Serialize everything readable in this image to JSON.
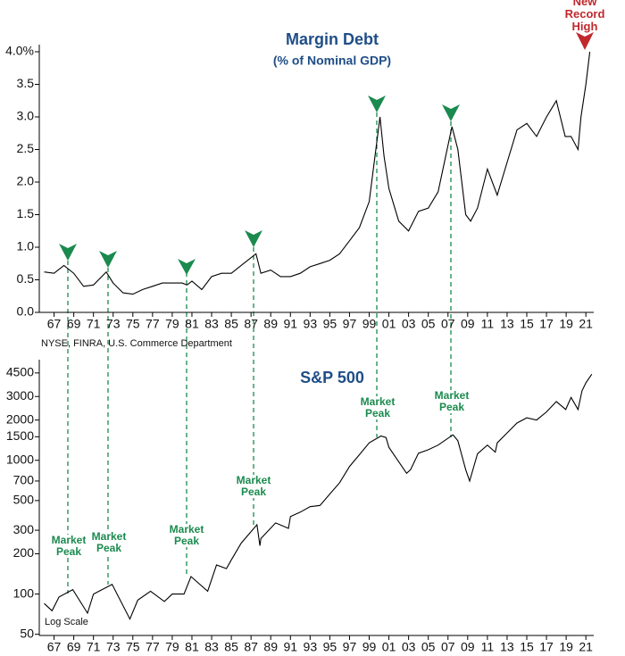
{
  "chart_data": [
    {
      "type": "line",
      "title": "Margin Debt",
      "subtitle": "(% of Nominal GDP)",
      "source": "NYSE, FINRA, U.S. Commerce Department",
      "annotations": [
        "New\nRecord High"
      ],
      "color": "#000000",
      "x": [
        1966,
        1967,
        1968,
        1969,
        1970,
        1971,
        1972.3,
        1973,
        1974,
        1975,
        1976,
        1977,
        1978,
        1979,
        1980,
        1980.5,
        1981,
        1982,
        1983,
        1984,
        1985,
        1986,
        1987.5,
        1988,
        1989,
        1990,
        1991,
        1992,
        1993,
        1994,
        1995,
        1996,
        1997,
        1998,
        1999,
        2000.1,
        2000.5,
        2001,
        2002,
        2003,
        2004,
        2005,
        2006,
        2007.4,
        2008,
        2008.8,
        2009.3,
        2010,
        2011,
        2012,
        2013,
        2014,
        2015,
        2016,
        2017,
        2018,
        2018.9,
        2019.5,
        2020.2,
        2020.5,
        2021,
        2021.4
      ],
      "values": [
        0.62,
        0.6,
        0.72,
        0.6,
        0.4,
        0.42,
        0.62,
        0.45,
        0.3,
        0.28,
        0.35,
        0.4,
        0.45,
        0.45,
        0.45,
        0.42,
        0.48,
        0.35,
        0.55,
        0.6,
        0.6,
        0.72,
        0.9,
        0.6,
        0.65,
        0.55,
        0.55,
        0.6,
        0.7,
        0.75,
        0.8,
        0.9,
        1.1,
        1.3,
        1.7,
        3.0,
        2.4,
        1.9,
        1.4,
        1.25,
        1.55,
        1.6,
        1.85,
        2.85,
        2.5,
        1.5,
        1.4,
        1.6,
        2.2,
        1.8,
        2.3,
        2.8,
        2.9,
        2.7,
        3.0,
        3.25,
        2.7,
        2.7,
        2.5,
        3.0,
        3.5,
        4.0
      ],
      "xlim": [
        1965.5,
        2021.8
      ],
      "xticks": [
        {
          "value": 1967,
          "label": "67"
        },
        {
          "value": 1969,
          "label": "69"
        },
        {
          "value": 1971,
          "label": "71"
        },
        {
          "value": 1973,
          "label": "73"
        },
        {
          "value": 1975,
          "label": "75"
        },
        {
          "value": 1977,
          "label": "77"
        },
        {
          "value": 1979,
          "label": "79"
        },
        {
          "value": 1981,
          "label": "81"
        },
        {
          "value": 1983,
          "label": "83"
        },
        {
          "value": 1985,
          "label": "85"
        },
        {
          "value": 1987,
          "label": "87"
        },
        {
          "value": 1989,
          "label": "89"
        },
        {
          "value": 1991,
          "label": "91"
        },
        {
          "value": 1993,
          "label": "93"
        },
        {
          "value": 1995,
          "label": "95"
        },
        {
          "value": 1997,
          "label": "97"
        },
        {
          "value": 1999,
          "label": "99"
        },
        {
          "value": 2001,
          "label": "01"
        },
        {
          "value": 2003,
          "label": "03"
        },
        {
          "value": 2005,
          "label": "05"
        },
        {
          "value": 2007,
          "label": "07"
        },
        {
          "value": 2009,
          "label": "09"
        },
        {
          "value": 2011,
          "label": "11"
        },
        {
          "value": 2013,
          "label": "13"
        },
        {
          "value": 2015,
          "label": "15"
        },
        {
          "value": 2017,
          "label": "17"
        },
        {
          "value": 2019,
          "label": "19"
        },
        {
          "value": 2021,
          "label": "21"
        }
      ],
      "ylim": [
        0,
        4
      ],
      "yticks": [
        {
          "value": 0,
          "label": "0.0"
        },
        0.5,
        {
          "value": 1,
          "label": "1.0"
        },
        1.5,
        {
          "value": 2,
          "label": "2.0"
        },
        2.5,
        {
          "value": 3,
          "label": "3.0"
        },
        3.5,
        {
          "value": 4,
          "label": "4.0%"
        }
      ]
    },
    {
      "type": "line",
      "title": "S&P 500",
      "log_scale": true,
      "scale_note": "Log Scale",
      "annotations": [
        "Market\nPeak",
        "Market\nPeak",
        "Market\nPeak",
        "Market\nPeak",
        "Market\nPeak",
        "Market\nPeak"
      ],
      "color": "#000000",
      "x": [
        1966,
        1966.8,
        1967.5,
        1968.9,
        1970.4,
        1971,
        1972.9,
        1974.7,
        1975.5,
        1976.8,
        1978.2,
        1979,
        1980.2,
        1980.9,
        1982.6,
        1983.5,
        1984.5,
        1985,
        1986,
        1987.6,
        1987.9,
        1988,
        1989.5,
        1990.8,
        1991,
        1992,
        1993,
        1994,
        1995,
        1996,
        1997,
        1998,
        1999,
        2000.2,
        2000.7,
        2001,
        2001.7,
        2002.8,
        2003.2,
        2004,
        2005,
        2006,
        2007.5,
        2008,
        2008.8,
        2009.2,
        2010,
        2011,
        2011.8,
        2012,
        2013,
        2014,
        2015,
        2016,
        2017,
        2018,
        2018.95,
        2019.5,
        2020.2,
        2020.6,
        2021,
        2021.6
      ],
      "values": [
        85,
        75,
        95,
        108,
        72,
        100,
        118,
        65,
        90,
        105,
        88,
        100,
        100,
        135,
        105,
        165,
        155,
        180,
        240,
        330,
        230,
        260,
        340,
        310,
        380,
        410,
        450,
        460,
        560,
        680,
        900,
        1100,
        1350,
        1520,
        1480,
        1250,
        1050,
        800,
        850,
        1130,
        1200,
        1300,
        1550,
        1400,
        850,
        700,
        1120,
        1300,
        1150,
        1350,
        1600,
        1900,
        2080,
        2000,
        2300,
        2750,
        2400,
        2950,
        2400,
        3300,
        3800,
        4400
      ],
      "xlim": [
        1965.5,
        2021.8
      ],
      "xticks": [
        {
          "value": 1967,
          "label": "67"
        },
        {
          "value": 1969,
          "label": "69"
        },
        {
          "value": 1971,
          "label": "71"
        },
        {
          "value": 1973,
          "label": "73"
        },
        {
          "value": 1975,
          "label": "75"
        },
        {
          "value": 1977,
          "label": "77"
        },
        {
          "value": 1979,
          "label": "79"
        },
        {
          "value": 1981,
          "label": "81"
        },
        {
          "value": 1983,
          "label": "83"
        },
        {
          "value": 1985,
          "label": "85"
        },
        {
          "value": 1987,
          "label": "87"
        },
        {
          "value": 1989,
          "label": "89"
        },
        {
          "value": 1991,
          "label": "91"
        },
        {
          "value": 1993,
          "label": "93"
        },
        {
          "value": 1995,
          "label": "95"
        },
        {
          "value": 1997,
          "label": "97"
        },
        {
          "value": 1999,
          "label": "99"
        },
        {
          "value": 2001,
          "label": "01"
        },
        {
          "value": 2003,
          "label": "03"
        },
        {
          "value": 2005,
          "label": "05"
        },
        {
          "value": 2007,
          "label": "07"
        },
        {
          "value": 2009,
          "label": "09"
        },
        {
          "value": 2011,
          "label": "11"
        },
        {
          "value": 2013,
          "label": "13"
        },
        {
          "value": 2015,
          "label": "15"
        },
        {
          "value": 2017,
          "label": "17"
        },
        {
          "value": 2019,
          "label": "19"
        },
        {
          "value": 2021,
          "label": "21"
        }
      ],
      "ylim": [
        49,
        5000
      ],
      "yticks": [
        50,
        100,
        200,
        300,
        500,
        700,
        1000,
        1500,
        2000,
        3000,
        4500
      ]
    }
  ]
}
